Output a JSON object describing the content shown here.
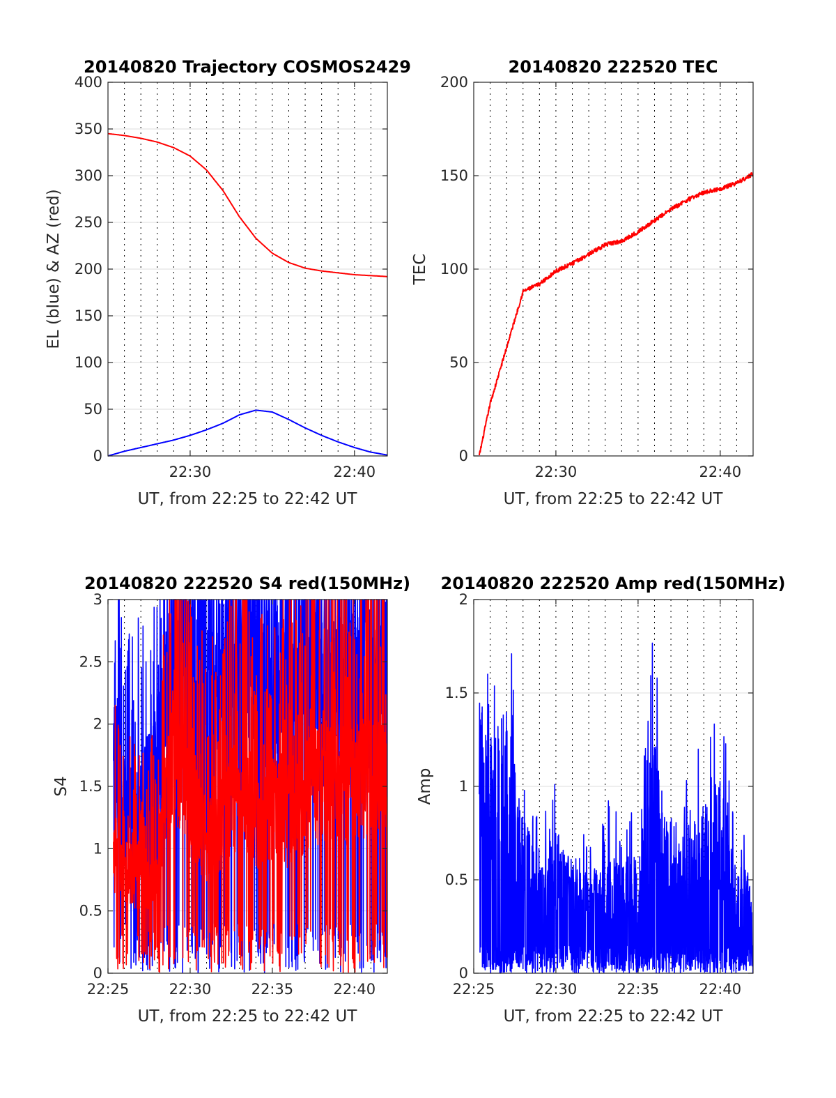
{
  "chart_data": [
    {
      "type": "line",
      "title": "20140820 Trajectory COSMOS2429",
      "xlabel": "UT, from 22:25 to 22:42 UT",
      "ylabel": "EL (blue) & AZ (red)",
      "xlim": [
        "22:25",
        "22:42"
      ],
      "ylim": [
        0,
        400
      ],
      "x_ticks": [
        "22:30",
        "22:40"
      ],
      "y_ticks": [
        "0",
        "50",
        "100",
        "150",
        "200",
        "250",
        "300",
        "350",
        "400"
      ],
      "grid": "horizontal solid, vertical dotted every minute",
      "series": [
        {
          "color": "#ff0000",
          "x": [
            "22:25",
            "22:26",
            "22:27",
            "22:28",
            "22:29",
            "22:30",
            "22:31",
            "22:32",
            "22:33",
            "22:34",
            "22:35",
            "22:36",
            "22:37",
            "22:38",
            "22:39",
            "22:40",
            "22:41",
            "22:42"
          ],
          "values": [
            345,
            343,
            340,
            336,
            330,
            321,
            306,
            284,
            256,
            233,
            217,
            207,
            201,
            198,
            196,
            194,
            193,
            192
          ]
        },
        {
          "color": "#0000ff",
          "x": [
            "22:25",
            "22:26",
            "22:27",
            "22:28",
            "22:29",
            "22:30",
            "22:31",
            "22:32",
            "22:33",
            "22:34",
            "22:35",
            "22:36",
            "22:37",
            "22:38",
            "22:39",
            "22:40",
            "22:41",
            "22:42"
          ],
          "values": [
            0,
            5,
            9,
            13,
            17,
            22,
            28,
            35,
            44,
            49,
            47,
            39,
            30,
            22,
            15,
            9,
            4,
            1
          ]
        }
      ]
    },
    {
      "type": "line",
      "title": "20140820 222520 TEC",
      "xlabel": "UT, from 22:25 to 22:42 UT",
      "ylabel": "TEC",
      "xlim": [
        "22:25",
        "22:42"
      ],
      "ylim": [
        0,
        200
      ],
      "x_ticks": [
        "22:30",
        "22:40"
      ],
      "y_ticks": [
        "0",
        "50",
        "100",
        "150",
        "200"
      ],
      "grid": "horizontal solid, vertical dotted every minute",
      "series": [
        {
          "color": "#ff0000",
          "x": [
            "22:25:20",
            "22:26",
            "22:27",
            "22:28",
            "22:29",
            "22:30",
            "22:31",
            "22:32",
            "22:33",
            "22:34",
            "22:35",
            "22:36",
            "22:37",
            "22:38",
            "22:39",
            "22:40",
            "22:41",
            "22:42"
          ],
          "values": [
            0,
            28,
            58,
            88,
            92,
            99,
            103,
            108,
            113,
            115,
            120,
            126,
            132,
            137,
            141,
            143,
            146,
            151
          ]
        }
      ]
    },
    {
      "type": "line",
      "title": "20140820 222520 S4 red(150MHz)",
      "xlabel": "UT, from 22:25 to 22:42 UT",
      "ylabel": "S4",
      "xlim": [
        "22:25",
        "22:42"
      ],
      "ylim": [
        0,
        3
      ],
      "x_ticks": [
        "22:25",
        "22:30",
        "22:35",
        "22:40"
      ],
      "y_ticks": [
        "0",
        "0.5",
        "1",
        "1.5",
        "2",
        "2.5",
        "3"
      ],
      "grid": "horizontal solid, vertical dotted every minute",
      "series": [
        {
          "color": "#0000ff",
          "x": [
            "22:25:20",
            "22:26",
            "22:27",
            "22:28",
            "22:29",
            "22:30",
            "22:31",
            "22:32",
            "22:33",
            "22:34",
            "22:35",
            "22:36",
            "22:37",
            "22:38",
            "22:39",
            "22:40",
            "22:41",
            "22:42"
          ],
          "values": [
            1.8,
            1.3,
            1.3,
            1.4,
            2.8,
            2.6,
            2.5,
            2.5,
            2.4,
            2.6,
            2.4,
            2.5,
            2.3,
            2.5,
            2.4,
            2.5,
            2.4,
            2.5
          ]
        },
        {
          "color": "#ff0000",
          "x": [
            "22:25:20",
            "22:26",
            "22:27",
            "22:28",
            "22:29",
            "22:30",
            "22:31",
            "22:32",
            "22:33",
            "22:34",
            "22:35",
            "22:36",
            "22:37",
            "22:38",
            "22:39",
            "22:40",
            "22:41",
            "22:42"
          ],
          "values": [
            1.0,
            0.9,
            0.8,
            0.9,
            2.0,
            1.5,
            1.2,
            1.4,
            1.6,
            1.3,
            1.5,
            1.4,
            1.6,
            1.7,
            1.7,
            1.7,
            1.8,
            1.6
          ]
        }
      ]
    },
    {
      "type": "line",
      "title": "20140820 222520 Amp red(150MHz)",
      "xlabel": "UT, from 22:25 to 22:42 UT",
      "ylabel": "Amp",
      "xlim": [
        "22:25",
        "22:42"
      ],
      "ylim": [
        0,
        2
      ],
      "x_ticks": [
        "22:25",
        "22:30",
        "22:35",
        "22:40"
      ],
      "y_ticks": [
        "0",
        "0.5",
        "1",
        "1.5",
        "2"
      ],
      "grid": "horizontal solid, vertical dotted every minute",
      "series": [
        {
          "color": "#0000ff",
          "x": [
            "22:25:20",
            "22:26",
            "22:27",
            "22:28",
            "22:29",
            "22:30",
            "22:31",
            "22:32",
            "22:33",
            "22:34",
            "22:35",
            "22:36",
            "22:37",
            "22:38",
            "22:39",
            "22:40",
            "22:41",
            "22:42"
          ],
          "values": [
            1.53,
            1.3,
            1.4,
            0.9,
            0.55,
            0.8,
            0.6,
            0.5,
            0.7,
            0.6,
            0.65,
            1.4,
            0.6,
            0.8,
            0.95,
            1.07,
            0.6,
            0.52
          ]
        }
      ]
    }
  ]
}
